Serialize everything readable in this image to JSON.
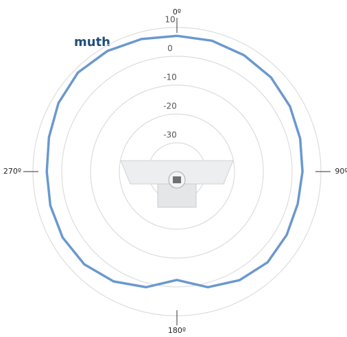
{
  "chart_data": {
    "type": "polar",
    "title": "muth",
    "theta": [
      0,
      15,
      30,
      45,
      60,
      75,
      90,
      105,
      120,
      135,
      150,
      165,
      180,
      195,
      210,
      225,
      240,
      255,
      270,
      285,
      300,
      315,
      330,
      345
    ],
    "r": [
      7.1,
      7.0,
      6.6,
      6.2,
      5.3,
      4.3,
      3.6,
      3.4,
      4.0,
      4.5,
      3.5,
      1.5,
      -2.4,
      1.5,
      4.0,
      5.5,
      5.8,
      5.5,
      5.2,
      6.0,
      7.5,
      8.6,
      8.3,
      7.6
    ],
    "color": "#6a98cf",
    "rlim": [
      -40,
      10
    ],
    "rticks": [
      -30,
      -20,
      -10,
      0,
      10
    ],
    "thetaticks": [
      {
        "value": 0,
        "label": "0º"
      },
      {
        "value": 90,
        "label": "90º"
      },
      {
        "value": 180,
        "label": "180º"
      },
      {
        "value": 270,
        "label": "270º"
      }
    ],
    "grid": true
  }
}
